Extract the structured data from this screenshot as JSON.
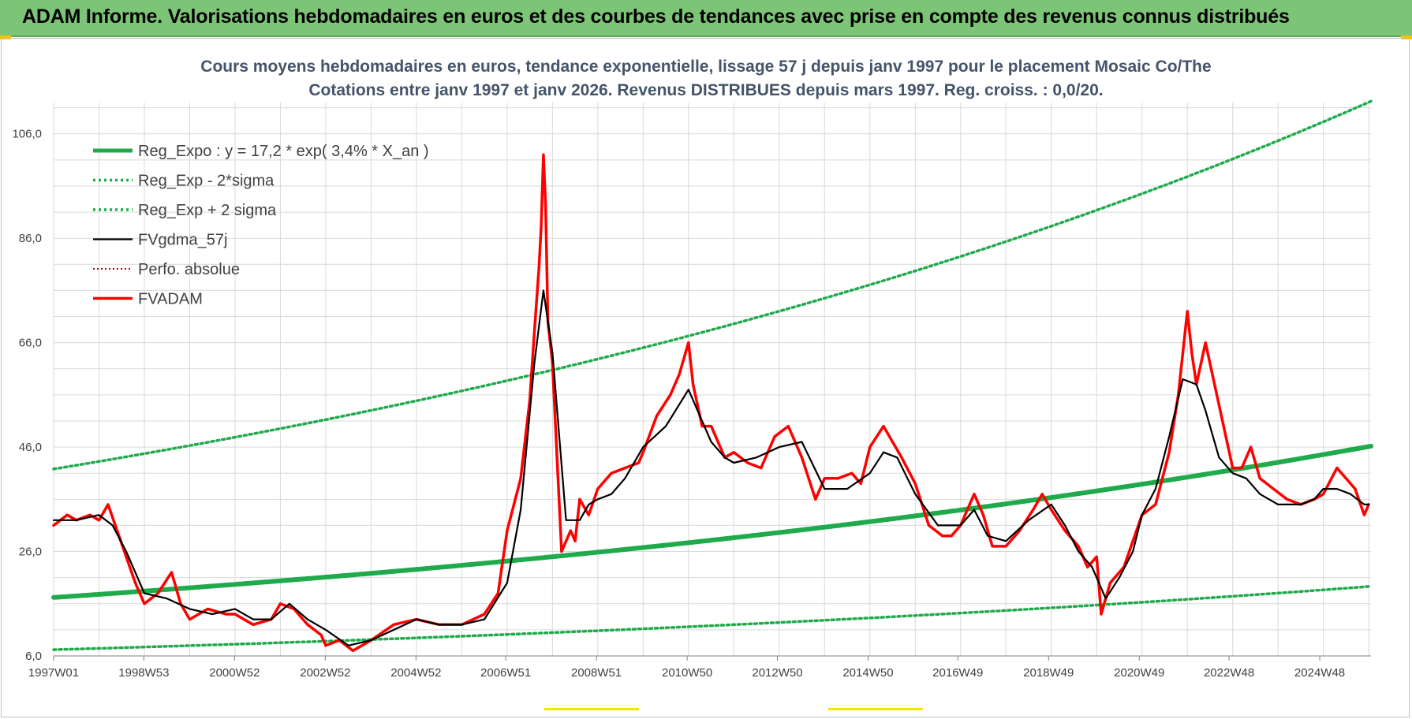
{
  "banner": {
    "title": "ADAM Informe. Valorisations hebdomadaires en euros et des courbes de tendances avec prise en compte des revenus connus distribués"
  },
  "colors": {
    "banner_bg": "#7cc576",
    "green": "#1faa4c",
    "black": "#000000",
    "red": "#ff0000",
    "dark_red": "#c00000",
    "grid": "#d9d9d9",
    "title": "#44546a"
  },
  "chart_data": {
    "type": "line",
    "title_line1": "Cours moyens hebdomadaires en euros, tendance exponentielle, lissage 57 j depuis janv 1997  pour le placement Mosaic Co/The",
    "title_line2": "Cotations entre janv 1997 et janv 2026. Revenus DISTRIBUES depuis mars 1997.  Reg. croiss. : 0,0/20.",
    "xlabel": "",
    "ylabel": "",
    "xlim": [
      1997.0,
      2026.05
    ],
    "ylim": [
      6.0,
      112.0
    ],
    "y_ticks": [
      6.0,
      26.0,
      46.0,
      66.0,
      86.0,
      106.0
    ],
    "y_tick_labels": [
      "6,0",
      "26,0",
      "46,0",
      "66,0",
      "86,0",
      "106,0"
    ],
    "x_ticks": [
      1997.0,
      1998.99,
      2000.99,
      2002.99,
      2004.99,
      2006.97,
      2008.97,
      2010.97,
      2012.96,
      2014.96,
      2016.94,
      2018.94,
      2020.94,
      2022.92,
      2024.92
    ],
    "x_tick_labels": [
      "1997W01",
      "1998W53",
      "2000W52",
      "2002W52",
      "2004W52",
      "2006W51",
      "2008W51",
      "2010W50",
      "2012W50",
      "2014W50",
      "2016W49",
      "2018W49",
      "2020W49",
      "2022W48",
      "2024W48"
    ],
    "grid": "on",
    "legend_placement": "top-left",
    "series": [
      {
        "name": "Reg_Expo : y = 17,2 * exp( 3,4% *  X_an )",
        "style": "thick-solid-green",
        "kind": "exp",
        "a": 17.2,
        "r": 0.034
      },
      {
        "name": "Reg_Exp - 2*sigma",
        "style": "dotted-green",
        "kind": "exp",
        "a": 7.2,
        "r": 0.034
      },
      {
        "name": "Reg_Exp + 2 sigma",
        "style": "dotted-green",
        "kind": "exp",
        "a": 41.8,
        "r": 0.034
      },
      {
        "name": "FVgdma_57j",
        "style": "solid-black",
        "x": [
          1997.0,
          1997.5,
          1998.0,
          1998.3,
          1998.6,
          1999.0,
          1999.5,
          2000.0,
          2000.5,
          2001.0,
          2001.4,
          2001.8,
          2002.2,
          2002.6,
          2003.0,
          2003.5,
          2004.0,
          2004.5,
          2005.0,
          2005.5,
          2006.0,
          2006.5,
          2007.0,
          2007.3,
          2007.6,
          2007.8,
          2008.0,
          2008.3,
          2008.6,
          2008.8,
          2009.0,
          2009.3,
          2009.6,
          2010.0,
          2010.5,
          2011.0,
          2011.2,
          2011.5,
          2011.8,
          2012.0,
          2012.5,
          2013.0,
          2013.5,
          2014.0,
          2014.5,
          2015.0,
          2015.3,
          2015.6,
          2016.0,
          2016.5,
          2017.0,
          2017.3,
          2017.6,
          2018.0,
          2018.5,
          2019.0,
          2019.3,
          2019.6,
          2019.9,
          2020.2,
          2020.5,
          2020.8,
          2021.0,
          2021.3,
          2021.6,
          2021.9,
          2022.2,
          2022.4,
          2022.7,
          2023.0,
          2023.3,
          2023.6,
          2024.0,
          2024.5,
          2024.8,
          2025.0,
          2025.3,
          2025.6,
          2025.9,
          2026.0
        ],
        "y": [
          32,
          32,
          33,
          31,
          26,
          18,
          17,
          15,
          14,
          15,
          13,
          13,
          16,
          13,
          11,
          8,
          9,
          11,
          13,
          12,
          12,
          13,
          20,
          34,
          62,
          76,
          64,
          32,
          32,
          35,
          36,
          37,
          40,
          46,
          50,
          57,
          53,
          47,
          44,
          43,
          44,
          46,
          47,
          38,
          38,
          41,
          45,
          44,
          37,
          31,
          31,
          34,
          29,
          28,
          32,
          35,
          31,
          26,
          23,
          17,
          21,
          26,
          33,
          38,
          48,
          59,
          58,
          53,
          44,
          41,
          40,
          37,
          35,
          35,
          36,
          38,
          38,
          37,
          35,
          35
        ]
      },
      {
        "name": "Perfo. absolue",
        "style": "dotted-darkred",
        "values": []
      },
      {
        "name": "FVADAM",
        "style": "thick-solid-red",
        "x": [
          1997.0,
          1997.3,
          1997.5,
          1997.8,
          1998.0,
          1998.2,
          1998.4,
          1998.6,
          1998.8,
          1999.0,
          1999.3,
          1999.6,
          1999.8,
          2000.0,
          2000.4,
          2000.8,
          2001.0,
          2001.4,
          2001.8,
          2002.0,
          2002.3,
          2002.6,
          2002.9,
          2003.0,
          2003.3,
          2003.6,
          2004.0,
          2004.5,
          2005.0,
          2005.5,
          2006.0,
          2006.5,
          2006.8,
          2007.0,
          2007.3,
          2007.5,
          2007.6,
          2007.7,
          2007.75,
          2007.8,
          2007.85,
          2007.9,
          2008.0,
          2008.2,
          2008.4,
          2008.5,
          2008.6,
          2008.8,
          2009.0,
          2009.3,
          2009.6,
          2009.9,
          2010.0,
          2010.3,
          2010.6,
          2010.8,
          2011.0,
          2011.1,
          2011.3,
          2011.5,
          2011.8,
          2012.0,
          2012.3,
          2012.6,
          2012.9,
          2013.2,
          2013.5,
          2013.8,
          2014.0,
          2014.3,
          2014.6,
          2014.8,
          2015.0,
          2015.3,
          2015.5,
          2015.7,
          2016.0,
          2016.3,
          2016.6,
          2016.8,
          2017.0,
          2017.3,
          2017.5,
          2017.7,
          2018.0,
          2018.3,
          2018.6,
          2018.8,
          2019.0,
          2019.3,
          2019.6,
          2019.8,
          2020.0,
          2020.1,
          2020.3,
          2020.6,
          2020.8,
          2021.0,
          2021.3,
          2021.6,
          2021.8,
          2022.0,
          2022.1,
          2022.2,
          2022.4,
          2022.6,
          2022.8,
          2023.0,
          2023.2,
          2023.4,
          2023.6,
          2023.9,
          2024.2,
          2024.5,
          2024.8,
          2025.0,
          2025.3,
          2025.5,
          2025.7,
          2025.9,
          2026.0
        ],
        "y": [
          31,
          33,
          32,
          33,
          32,
          35,
          30,
          25,
          20,
          16,
          18,
          22,
          16,
          13,
          15,
          14,
          14,
          12,
          13,
          16,
          15,
          12,
          10,
          8,
          9,
          7,
          9,
          12,
          13,
          12,
          12,
          14,
          18,
          30,
          40,
          55,
          68,
          80,
          88,
          102,
          92,
          70,
          62,
          26,
          30,
          28,
          36,
          33,
          38,
          41,
          42,
          43,
          45,
          52,
          56,
          60,
          66,
          58,
          50,
          50,
          44,
          45,
          43,
          42,
          48,
          50,
          44,
          36,
          40,
          40,
          41,
          39,
          46,
          50,
          47,
          44,
          39,
          31,
          29,
          29,
          31,
          37,
          33,
          27,
          27,
          30,
          34,
          37,
          34,
          30,
          27,
          23,
          25,
          14,
          20,
          23,
          28,
          33,
          35,
          45,
          56,
          72,
          64,
          58,
          66,
          58,
          50,
          42,
          42,
          46,
          40,
          38,
          36,
          35,
          36,
          37,
          42,
          40,
          38,
          33,
          35
        ]
      }
    ]
  }
}
